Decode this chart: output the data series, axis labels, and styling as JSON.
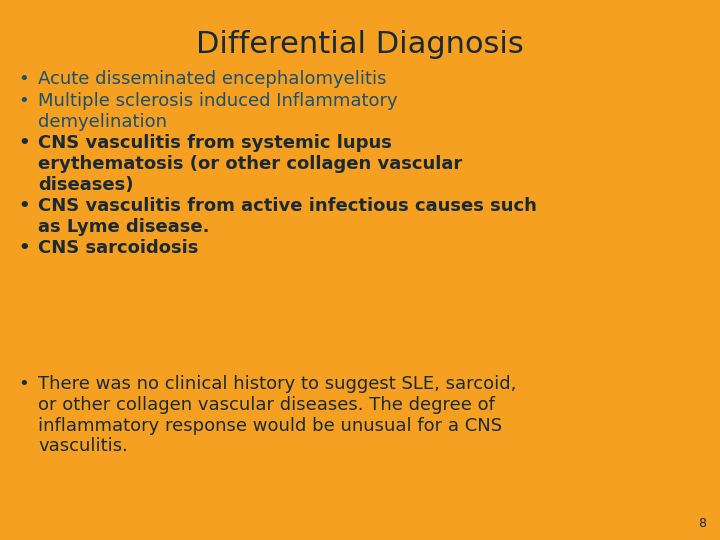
{
  "title": "Differential Diagnosis",
  "title_color": "#1a2a35",
  "title_fontsize": 22,
  "background_color": "#f5a020",
  "bullet_items": [
    {
      "text": "Acute disseminated encephalomyelitis",
      "color": "#1a5070",
      "bold": false,
      "n_lines": 1
    },
    {
      "text": "Multiple sclerosis induced Inflammatory\ndemyelination",
      "color": "#1a5070",
      "bold": false,
      "n_lines": 2
    },
    {
      "text": "CNS vasculitis from systemic lupus\nerythematosis (or other collagen vascular\ndiseases)",
      "color": "#1a2a35",
      "bold": true,
      "n_lines": 3
    },
    {
      "text": "CNS vasculitis from active infectious causes such\nas Lyme disease.",
      "color": "#1a2a35",
      "bold": true,
      "n_lines": 2
    },
    {
      "text": "CNS sarcoidosis",
      "color": "#1a2a35",
      "bold": true,
      "n_lines": 1
    }
  ],
  "footer_text": "There was no clinical history to suggest SLE, sarcoid,\nor other collagen vascular diseases. The degree of\ninflammatory response would be unusual for a CNS\nvasculitis.",
  "footer_color": "#1a2a35",
  "footer_bold": false,
  "page_number": "8",
  "page_num_color": "#1a2a35",
  "bullet_fontsize": 13,
  "footer_fontsize": 13
}
